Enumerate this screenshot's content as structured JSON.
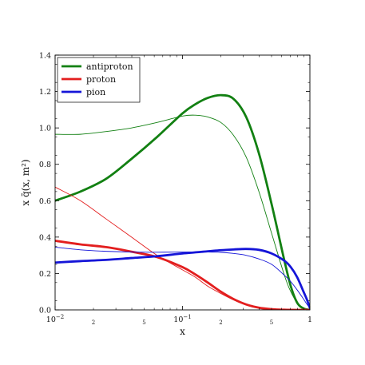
{
  "chart_data": {
    "type": "line",
    "xlabel": "x",
    "ylabel": "x q̄(x, m²)",
    "xscale": "log",
    "xlim": [
      0.01,
      1
    ],
    "ylim": [
      0,
      1.4
    ],
    "y_ticks": [
      "0.0",
      "0.2",
      "0.4",
      "0.6",
      "0.8",
      "1.0",
      "1.2",
      "1.4"
    ],
    "x_ticks": [
      {
        "value": 0.01,
        "base": "10",
        "exp": "−2"
      },
      {
        "value": 0.1,
        "base": "10",
        "exp": "−1"
      },
      {
        "value": 1,
        "base": "1",
        "exp": ""
      }
    ],
    "x_minor_labels": [
      {
        "value": 0.02,
        "label": "2"
      },
      {
        "value": 0.05,
        "label": "5"
      },
      {
        "value": 0.2,
        "label": "2"
      },
      {
        "value": 0.5,
        "label": "5"
      }
    ],
    "legend": {
      "position": "top-left",
      "entries": [
        {
          "label": "antiproton",
          "color": "#128012"
        },
        {
          "label": "proton",
          "color": "#e31e1e"
        },
        {
          "label": "pion",
          "color": "#1515d8"
        }
      ]
    },
    "series": [
      {
        "name": "antiproton",
        "color": "#128012",
        "width": "thick",
        "x": [
          0.01,
          0.0158,
          0.0251,
          0.0398,
          0.0631,
          0.1,
          0.126,
          0.158,
          0.2,
          0.251,
          0.316,
          0.398,
          0.501,
          0.631,
          0.708,
          0.794,
          0.891,
          1
        ],
        "y": [
          0.6,
          0.65,
          0.72,
          0.83,
          0.95,
          1.08,
          1.13,
          1.165,
          1.18,
          1.16,
          1.06,
          0.86,
          0.58,
          0.27,
          0.13,
          0.04,
          0.008,
          0.0
        ]
      },
      {
        "name": "antiproton",
        "color": "#128012",
        "width": "thin",
        "x": [
          0.01,
          0.0158,
          0.0251,
          0.0398,
          0.0631,
          0.1,
          0.126,
          0.158,
          0.2,
          0.251,
          0.316,
          0.398,
          0.501,
          0.631,
          0.708,
          0.794,
          0.891,
          1
        ],
        "y": [
          0.965,
          0.965,
          0.98,
          1.0,
          1.03,
          1.065,
          1.07,
          1.06,
          1.03,
          0.96,
          0.84,
          0.65,
          0.42,
          0.19,
          0.1,
          0.04,
          0.01,
          0.0
        ]
      },
      {
        "name": "proton",
        "color": "#e31e1e",
        "width": "thick",
        "x": [
          0.01,
          0.0158,
          0.0251,
          0.0398,
          0.0631,
          0.1,
          0.126,
          0.158,
          0.2,
          0.251,
          0.316,
          0.398,
          0.501,
          0.631,
          0.794,
          1
        ],
        "y": [
          0.38,
          0.36,
          0.345,
          0.32,
          0.29,
          0.235,
          0.195,
          0.15,
          0.1,
          0.06,
          0.03,
          0.012,
          0.004,
          0.001,
          0.0,
          0.0
        ]
      },
      {
        "name": "proton",
        "color": "#e31e1e",
        "width": "thin",
        "x": [
          0.01,
          0.0158,
          0.0251,
          0.0398,
          0.0631,
          0.1,
          0.126,
          0.158,
          0.2,
          0.251,
          0.316,
          0.398,
          0.501,
          0.631,
          0.794,
          1
        ],
        "y": [
          0.675,
          0.6,
          0.5,
          0.4,
          0.3,
          0.22,
          0.18,
          0.13,
          0.09,
          0.055,
          0.028,
          0.012,
          0.004,
          0.001,
          0.0,
          0.0
        ]
      },
      {
        "name": "pion",
        "color": "#1515d8",
        "width": "thick",
        "x": [
          0.01,
          0.0158,
          0.0251,
          0.0398,
          0.0631,
          0.1,
          0.158,
          0.2,
          0.251,
          0.316,
          0.398,
          0.501,
          0.631,
          0.708,
          0.794,
          0.891,
          0.95,
          1
        ],
        "y": [
          0.26,
          0.268,
          0.275,
          0.285,
          0.295,
          0.31,
          0.322,
          0.328,
          0.332,
          0.335,
          0.33,
          0.31,
          0.27,
          0.235,
          0.18,
          0.1,
          0.055,
          0.01
        ]
      },
      {
        "name": "pion",
        "color": "#1515d8",
        "width": "thin",
        "x": [
          0.01,
          0.0158,
          0.0251,
          0.0398,
          0.0631,
          0.1,
          0.158,
          0.2,
          0.251,
          0.316,
          0.398,
          0.501,
          0.631,
          0.708,
          0.794,
          0.891,
          0.95,
          1
        ],
        "y": [
          0.345,
          0.33,
          0.322,
          0.318,
          0.317,
          0.318,
          0.318,
          0.316,
          0.31,
          0.3,
          0.28,
          0.25,
          0.19,
          0.155,
          0.11,
          0.06,
          0.03,
          0.01
        ]
      }
    ]
  }
}
